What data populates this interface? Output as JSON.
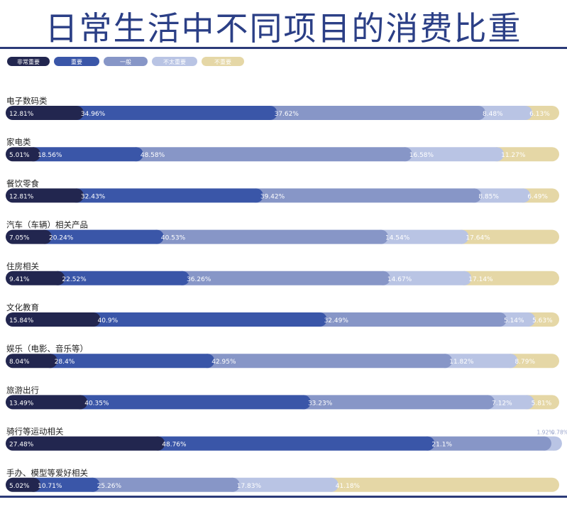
{
  "page_title": "日常生活中不同项目的消费比重",
  "chart_data": {
    "type": "bar",
    "stacked": "horizontal-100%",
    "legend_position": "top-left",
    "grid": false,
    "title": "日常生活中不同项目的消费比重",
    "colors": [
      "#22264f",
      "#3a56a8",
      "#8796c7",
      "#b9c4e4",
      "#e5d7a6"
    ],
    "label_colors": [
      "#ffffff",
      "#ffffff",
      "#ffffff",
      "#ffffff",
      "#ffffff"
    ],
    "series": [
      {
        "name": "非常重要",
        "values": [
          12.81,
          5.01,
          12.81,
          7.05,
          9.41,
          15.84,
          8.04,
          13.49,
          27.48,
          5.02
        ]
      },
      {
        "name": "重要",
        "values": [
          34.96,
          18.56,
          32.43,
          20.24,
          22.52,
          40.9,
          28.4,
          40.35,
          48.76,
          10.71
        ]
      },
      {
        "name": "一般",
        "values": [
          37.62,
          48.58,
          39.42,
          40.53,
          36.26,
          32.49,
          42.95,
          33.23,
          21.1,
          25.26
        ]
      },
      {
        "name": "不太重要",
        "values": [
          8.48,
          16.58,
          8.85,
          14.54,
          14.67,
          5.14,
          11.82,
          7.12,
          1.92,
          17.83
        ]
      },
      {
        "name": "不重要",
        "values": [
          6.13,
          11.27,
          6.49,
          17.64,
          17.14,
          5.63,
          8.79,
          5.81,
          0.78,
          41.18
        ]
      }
    ],
    "value_labels": [
      [
        "12.81%",
        "34.96%",
        "37.62%",
        "8.48%",
        "6.13%"
      ],
      [
        "5.01%",
        "18.56%",
        "48.58%",
        "16.58%",
        "11.27%"
      ],
      [
        "12.81%",
        "32.43%",
        "39.42%",
        "8.85%",
        "6.49%"
      ],
      [
        "7.05%",
        "20.24%",
        "40.53%",
        "14.54%",
        "17.64%"
      ],
      [
        "9.41%",
        "22.52%",
        "36.26%",
        "14.67%",
        "17.14%"
      ],
      [
        "15.84%",
        "40.9%",
        "32.49%",
        "5.14%",
        "5.63%"
      ],
      [
        "8.04%",
        "28.4%",
        "42.95%",
        "11.82%",
        "8.79%"
      ],
      [
        "13.49%",
        "40.35%",
        "33.23%",
        "7.12%",
        "5.81%"
      ],
      [
        "27.48%",
        "48.76%",
        "21.1%",
        "1.92%",
        "0.78%"
      ],
      [
        "5.02%",
        "10.71%",
        "25.26%",
        "17.83%",
        "41.18%"
      ]
    ],
    "categories": [
      "电子数码类",
      "家电类",
      "餐饮零食",
      "汽车（车辆）相关产品",
      "住房相关",
      "文化教育",
      "娱乐（电影、音乐等）",
      "旅游出行",
      "骑行等运动相关",
      "手办、模型等爱好相关"
    ]
  }
}
